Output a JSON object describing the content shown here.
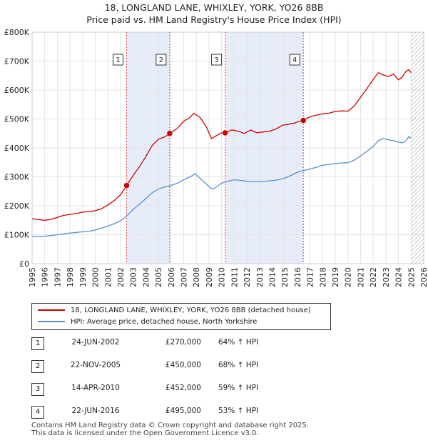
{
  "chart_data": {
    "type": "line",
    "title": "18, LONGLAND LANE, WHIXLEY, YORK, YO26 8BB",
    "subtitle": "Price paid vs. HM Land Registry's House Price Index (HPI)",
    "xlabel": "",
    "ylabel": "",
    "xlim": [
      1995,
      2026
    ],
    "ylim": [
      0,
      800000
    ],
    "x_ticks": [
      1995,
      1996,
      1997,
      1998,
      1999,
      2000,
      2001,
      2002,
      2003,
      2004,
      2005,
      2006,
      2007,
      2008,
      2009,
      2010,
      2011,
      2012,
      2013,
      2014,
      2015,
      2016,
      2017,
      2018,
      2019,
      2020,
      2021,
      2022,
      2023,
      2024,
      2025,
      2026
    ],
    "y_ticks": [
      {
        "value": 0,
        "label": "£0"
      },
      {
        "value": 100000,
        "label": "£100K"
      },
      {
        "value": 200000,
        "label": "£200K"
      },
      {
        "value": 300000,
        "label": "£300K"
      },
      {
        "value": 400000,
        "label": "£400K"
      },
      {
        "value": 500000,
        "label": "£500K"
      },
      {
        "value": 600000,
        "label": "£600K"
      },
      {
        "value": 700000,
        "label": "£700K"
      },
      {
        "value": 800000,
        "label": "£800K"
      }
    ],
    "grid": true,
    "series": [
      {
        "name": "18, LONGLAND LANE, WHIXLEY, YORK, YO26 8BB (detached house)",
        "color": "#cc0000",
        "x": [
          1995.0,
          1995.5,
          1996.0,
          1996.5,
          1997.0,
          1997.5,
          1998.0,
          1998.5,
          1999.0,
          1999.5,
          2000.0,
          2000.5,
          2001.0,
          2001.5,
          2002.0,
          2002.48,
          2003.0,
          2003.5,
          2004.0,
          2004.5,
          2005.0,
          2005.5,
          2005.89,
          2006.5,
          2007.0,
          2007.5,
          2007.8,
          2008.3,
          2008.8,
          2009.2,
          2009.5,
          2010.0,
          2010.28,
          2010.8,
          2011.3,
          2011.8,
          2012.3,
          2012.8,
          2013.3,
          2013.8,
          2014.3,
          2014.8,
          2015.3,
          2015.8,
          2016.0,
          2016.47,
          2017.0,
          2017.5,
          2018.0,
          2018.5,
          2019.0,
          2019.5,
          2020.0,
          2020.5,
          2021.0,
          2021.5,
          2022.0,
          2022.4,
          2022.8,
          2023.2,
          2023.6,
          2024.0,
          2024.3,
          2024.6,
          2024.85,
          2025.0
        ],
        "values": [
          155000,
          152000,
          150000,
          153000,
          160000,
          167000,
          170000,
          173000,
          178000,
          180000,
          183000,
          190000,
          203000,
          218000,
          238000,
          270000,
          305000,
          335000,
          370000,
          408000,
          430000,
          438000,
          450000,
          468000,
          492000,
          505000,
          520000,
          505000,
          472000,
          432000,
          440000,
          452000,
          452000,
          462000,
          458000,
          450000,
          462000,
          452000,
          455000,
          458000,
          465000,
          478000,
          482000,
          486000,
          490000,
          495000,
          508000,
          513000,
          518000,
          520000,
          526000,
          528000,
          527000,
          545000,
          575000,
          605000,
          636000,
          660000,
          652000,
          647000,
          655000,
          635000,
          645000,
          665000,
          670000,
          660000
        ]
      },
      {
        "name": "HPI: Average price, detached house, North Yorkshire",
        "color": "#5b8fc9",
        "x": [
          1995.0,
          1995.5,
          1996.0,
          1996.5,
          1997.0,
          1997.5,
          1998.0,
          1998.5,
          1999.0,
          1999.5,
          2000.0,
          2000.5,
          2001.0,
          2001.5,
          2002.0,
          2002.5,
          2003.0,
          2003.5,
          2004.0,
          2004.5,
          2005.0,
          2005.5,
          2006.0,
          2006.5,
          2007.0,
          2007.5,
          2007.9,
          2008.3,
          2008.8,
          2009.2,
          2009.5,
          2010.0,
          2010.5,
          2011.0,
          2011.5,
          2012.0,
          2012.5,
          2013.0,
          2013.5,
          2014.0,
          2014.5,
          2015.0,
          2015.5,
          2016.0,
          2016.5,
          2017.0,
          2017.5,
          2018.0,
          2018.5,
          2019.0,
          2019.5,
          2020.0,
          2020.5,
          2021.0,
          2021.5,
          2022.0,
          2022.4,
          2022.8,
          2023.2,
          2023.6,
          2024.0,
          2024.3,
          2024.6,
          2024.85,
          2025.0
        ],
        "values": [
          95000,
          94000,
          95000,
          97000,
          100000,
          103000,
          106000,
          108000,
          110000,
          112000,
          116000,
          123000,
          130000,
          138000,
          148000,
          165000,
          188000,
          205000,
          225000,
          245000,
          258000,
          265000,
          270000,
          278000,
          290000,
          300000,
          310000,
          295000,
          275000,
          258000,
          262000,
          278000,
          285000,
          290000,
          288000,
          285000,
          283000,
          283000,
          285000,
          287000,
          290000,
          296000,
          305000,
          316000,
          322000,
          327000,
          333000,
          340000,
          343000,
          346000,
          348000,
          349000,
          358000,
          372000,
          388000,
          405000,
          425000,
          432000,
          428000,
          425000,
          420000,
          418000,
          425000,
          440000,
          432000
        ]
      }
    ],
    "sales": [
      {
        "label": "1",
        "x": 2002.48,
        "value": 270000
      },
      {
        "label": "2",
        "x": 2005.89,
        "value": 450000
      },
      {
        "label": "3",
        "x": 2010.28,
        "value": 452000
      },
      {
        "label": "4",
        "x": 2016.47,
        "value": 495000
      }
    ],
    "shaded_ranges": [
      [
        2002.48,
        2005.89
      ],
      [
        2010.28,
        2016.47
      ]
    ],
    "hatched_from": 2025.0
  },
  "legend": {
    "property_label": "18, LONGLAND LANE, WHIXLEY, YORK, YO26 8BB (detached house)",
    "hpi_label": "HPI: Average price, detached house, North Yorkshire"
  },
  "sales_table": [
    {
      "num": "1",
      "date": "24-JUN-2002",
      "price": "£270,000",
      "hpi": "64% ↑ HPI"
    },
    {
      "num": "2",
      "date": "22-NOV-2005",
      "price": "£450,000",
      "hpi": "68% ↑ HPI"
    },
    {
      "num": "3",
      "date": "14-APR-2010",
      "price": "£452,000",
      "hpi": "59% ↑ HPI"
    },
    {
      "num": "4",
      "date": "22-JUN-2016",
      "price": "£495,000",
      "hpi": "53% ↑ HPI"
    }
  ],
  "footer": {
    "line1": "Contains HM Land Registry data © Crown copyright and database right 2025.",
    "line2": "This data is licensed under the Open Government Licence v3.0."
  }
}
